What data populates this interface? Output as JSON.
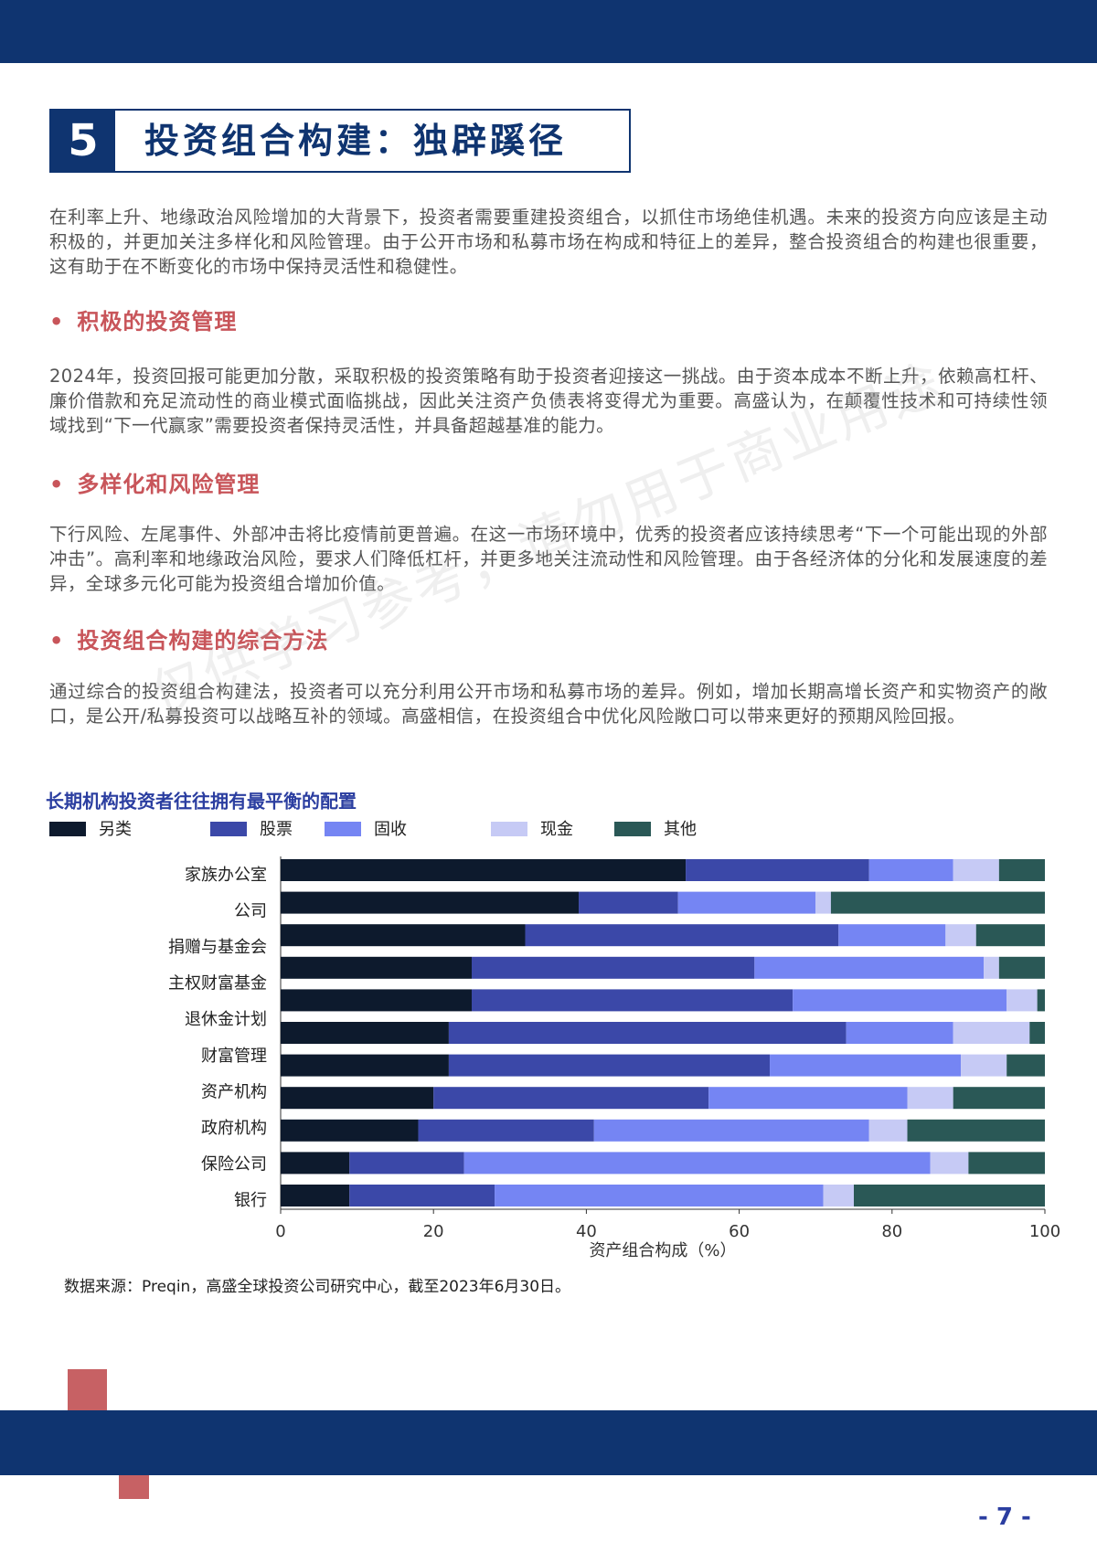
{
  "header": {
    "section_number": "5",
    "section_title": "投资组合构建：独辟蹊径"
  },
  "paragraphs": [
    "在利率上升、地缘政治风险增加的大背景下，投资者需要重建投资组合，以抓住市场绝佳机遇。未来的投资方向应该是主动积极的，并更加关注多样化和风险管理。由于公开市场和私募市场在构成和特征上的差异，整合投资组合的构建也很重要，这有助于在不断变化的市场中保持灵活性和稳健性。",
    "2024年，投资回报可能更加分散，采取积极的投资策略有助于投资者迎接这一挑战。由于资本成本不断上升，依赖高杠杆、廉价借款和充足流动性的商业模式面临挑战，因此关注资产负债表将变得尤为重要。高盛认为，在颠覆性技术和可持续性领域找到“下一代赢家”需要投资者保持灵活性，并具备超越基准的能力。",
    "下行风险、左尾事件、外部冲击将比疫情前更普遍。在这一市场环境中，优秀的投资者应该持续思考“下一个可能出现的外部冲击”。高利率和地缘政治风险，要求人们降低杠杆，并更多地关注流动性和风险管理。由于各经济体的分化和发展速度的差异，全球多元化可能为投资组合增加价值。",
    "通过综合的投资组合构建法，投资者可以充分利用公开市场和私募市场的差异。例如，增加长期高增长资产和实物资产的敞口，是公开/私募投资可以战略互补的领域。高盛相信，在投资组合中优化风险敞口可以带来更好的预期风险回报。"
  ],
  "bullets": [
    "积极的投资管理",
    "多样化和风险管理",
    "投资组合构建的综合方法"
  ],
  "watermark": "仅供学习参考，请勿用于商业用途",
  "chart_data": {
    "type": "bar",
    "orientation": "horizontal",
    "stacked": true,
    "title": "长期机构投资者往往拥有最平衡的配置",
    "xlabel": "资产组合构成（%）",
    "categories": [
      "家族办公室",
      "公司",
      "捐赠与基金会",
      "主权财富基金",
      "退休金计划",
      null,
      "财富管理",
      "资产机构",
      "政府机构",
      "保险公司",
      "银行"
    ],
    "series": [
      {
        "name": "另类",
        "color": "#0d1a2d",
        "values": [
          53,
          39,
          32,
          25,
          25,
          22,
          22,
          20,
          18,
          9,
          9
        ]
      },
      {
        "name": "股票",
        "color": "#3b48a8",
        "values": [
          24,
          13,
          41,
          37,
          42,
          52,
          42,
          36,
          23,
          15,
          19
        ]
      },
      {
        "name": "固收",
        "color": "#7585f3",
        "values": [
          11,
          18,
          14,
          30,
          28,
          14,
          25,
          26,
          36,
          61,
          43
        ]
      },
      {
        "name": "现金",
        "color": "#c6caf5",
        "values": [
          6,
          2,
          4,
          2,
          4,
          10,
          6,
          6,
          5,
          5,
          4
        ]
      },
      {
        "name": "其他",
        "color": "#2a5856",
        "values": [
          6,
          28,
          9,
          6,
          1,
          2,
          5,
          12,
          18,
          10,
          25
        ]
      }
    ],
    "xlim": [
      0,
      100
    ],
    "xticks": [
      0,
      20,
      40,
      60,
      80,
      100
    ]
  },
  "source": "数据来源：Preqin，高盛全球投资公司研究中心，截至2023年6月30日。",
  "page_number": "- 7 -"
}
